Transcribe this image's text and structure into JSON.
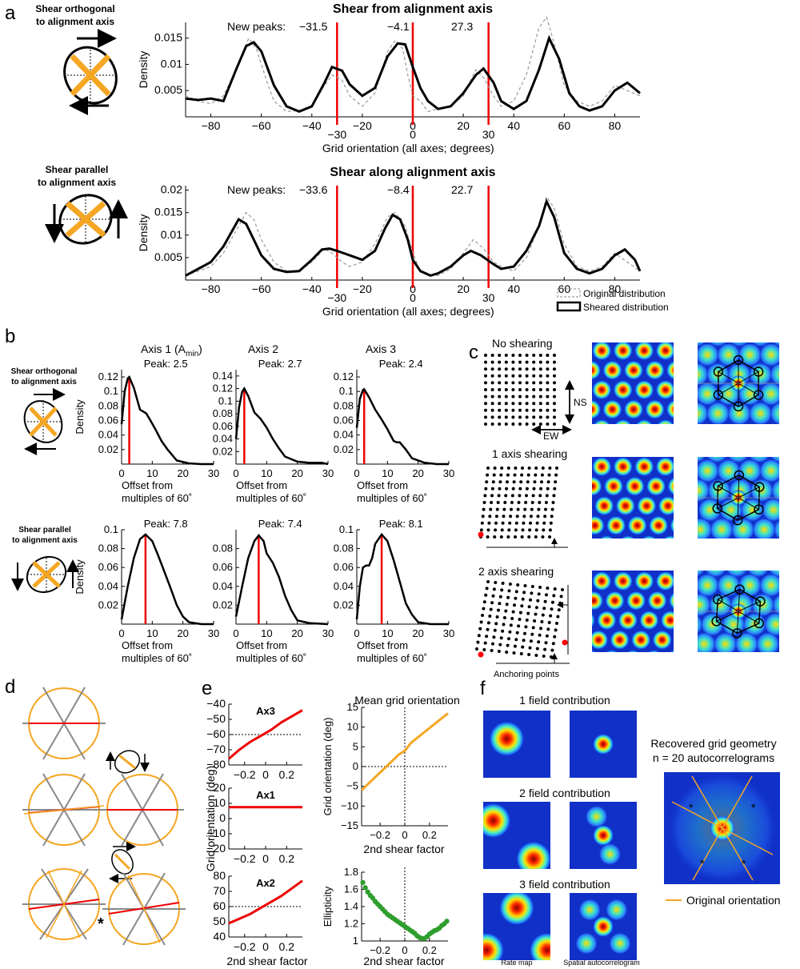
{
  "panels": {
    "a": "a",
    "b": "b",
    "c": "c",
    "d": "d",
    "e": "e",
    "f": "f"
  },
  "a": {
    "top": {
      "side_label": [
        "Shear orthogonal",
        "to alignment axis"
      ],
      "title": "Shear from alignment axis",
      "new_peaks_label": "New peaks:",
      "peaks": [
        "−31.5",
        "−4.1",
        "27.3"
      ]
    },
    "bottom": {
      "side_label": [
        "Shear parallel",
        "to alignment axis"
      ],
      "title": "Shear along alignment axis",
      "new_peaks_label": "New peaks:",
      "peaks": [
        "−33.6",
        "−8.4",
        "22.7"
      ]
    },
    "legend": {
      "original": "Original distribution",
      "sheared": "Sheared distribution"
    }
  },
  "b": {
    "side_top": [
      "Shear orthogonal",
      "to alignment axis"
    ],
    "side_bottom": [
      "Shear parallel",
      "to alignment axis"
    ],
    "axis_titles": [
      "Axis 1 (A",
      "min",
      ")",
      "Axis 2",
      "Axis 3"
    ],
    "xlabel": [
      "Offset from",
      "multiples of 60˚"
    ],
    "peaks_top": [
      "Peak: 2.5",
      "Peak: 2.7",
      "Peak: 2.4"
    ],
    "peaks_bottom": [
      "Peak: 7.8",
      "Peak: 7.4",
      "Peak: 8.1"
    ]
  },
  "c": {
    "rows": [
      "No shearing",
      "1 axis shearing",
      "2 axis shearing"
    ],
    "ns": "NS",
    "ew": "EW",
    "anchoring": "Anchoring points"
  },
  "e": {
    "left_titles": [
      "Ax3",
      "Ax1",
      "Ax2"
    ],
    "left_ylabel": "Grid orientation (deg)",
    "xlabel": "2nd shear factor",
    "mean_title": "Mean grid orientation",
    "mean_ylabel": "Grid orientation (deg)",
    "ell_ylabel": "Ellipticity"
  },
  "f": {
    "rows": [
      "1 field contribution",
      "2 field contribution",
      "3 field contribution"
    ],
    "rate_map": "Rate map",
    "autocorr": "Spatial autocorrelogram",
    "recovered_title": [
      "Recovered grid geometry",
      "n = 20 autocorrelograms"
    ],
    "legend": "Original orientation"
  },
  "chart_data": [
    {
      "type": "line",
      "panel": "a-top",
      "title": "Shear from alignment axis",
      "xlabel": "Grid orientation (all axes; degrees)",
      "ylabel": "Density",
      "xlim": [
        -90,
        90
      ],
      "ylim": [
        0,
        0.018
      ],
      "xticks": [
        -80,
        -60,
        -40,
        -20,
        0,
        20,
        40,
        60,
        80
      ],
      "yticks": [
        0.005,
        0.01,
        0.015
      ],
      "marker_lines": [
        -30,
        0,
        30
      ],
      "series": [
        {
          "name": "Original distribution",
          "style": "dashed",
          "x": [
            -90,
            -85,
            -80,
            -75,
            -70,
            -65,
            -62,
            -58,
            -55,
            -50,
            -45,
            -40,
            -35,
            -32,
            -28,
            -25,
            -20,
            -15,
            -10,
            -7,
            -4,
            -2,
            0,
            3,
            6,
            10,
            15,
            20,
            25,
            28,
            32,
            35,
            40,
            45,
            50,
            53,
            56,
            60,
            65,
            70,
            75,
            80,
            85,
            90
          ],
          "y": [
            0.004,
            0.003,
            0.0025,
            0.004,
            0.009,
            0.015,
            0.013,
            0.007,
            0.003,
            0.001,
            0.0012,
            0.002,
            0.006,
            0.008,
            0.007,
            0.004,
            0.002,
            0.0045,
            0.0125,
            0.0145,
            0.013,
            0.008,
            0.004,
            0.003,
            0.001,
            0.0015,
            0.002,
            0.004,
            0.009,
            0.0075,
            0.004,
            0.002,
            0.003,
            0.008,
            0.017,
            0.019,
            0.014,
            0.006,
            0.003,
            0.002,
            0.003,
            0.006,
            0.005,
            0.004
          ]
        },
        {
          "name": "Sheared distribution",
          "style": "solid",
          "x": [
            -90,
            -85,
            -80,
            -75,
            -70,
            -66,
            -63,
            -60,
            -55,
            -50,
            -45,
            -40,
            -35,
            -32,
            -28,
            -25,
            -20,
            -15,
            -10,
            -6,
            -3,
            0,
            3,
            6,
            10,
            15,
            20,
            25,
            28,
            32,
            35,
            40,
            45,
            50,
            54,
            58,
            62,
            66,
            70,
            75,
            80,
            85,
            90
          ],
          "y": [
            0.0035,
            0.0032,
            0.0035,
            0.003,
            0.009,
            0.0135,
            0.0142,
            0.0125,
            0.006,
            0.002,
            0.001,
            0.002,
            0.0065,
            0.0095,
            0.0088,
            0.0062,
            0.004,
            0.0055,
            0.0115,
            0.014,
            0.0138,
            0.0095,
            0.0055,
            0.003,
            0.0015,
            0.002,
            0.0045,
            0.008,
            0.0092,
            0.0065,
            0.003,
            0.0015,
            0.003,
            0.009,
            0.015,
            0.011,
            0.0045,
            0.002,
            0.0012,
            0.002,
            0.005,
            0.0065,
            0.0045
          ]
        }
      ]
    },
    {
      "type": "line",
      "panel": "a-bottom",
      "title": "Shear along alignment axis",
      "xlabel": "Grid orientation (all axes; degrees)",
      "ylabel": "Density",
      "xlim": [
        -90,
        90
      ],
      "ylim": [
        0,
        0.021
      ],
      "xticks": [
        -80,
        -60,
        -40,
        -20,
        0,
        20,
        40,
        60,
        80
      ],
      "yticks": [
        0.005,
        0.01,
        0.015,
        0.02
      ],
      "marker_lines": [
        -30,
        0,
        30
      ],
      "series": [
        {
          "name": "Original distribution",
          "style": "dashed",
          "x": [
            -90,
            -85,
            -80,
            -75,
            -70,
            -66,
            -63,
            -60,
            -55,
            -50,
            -45,
            -40,
            -35,
            -32,
            -28,
            -25,
            -20,
            -15,
            -10,
            -7,
            -3,
            0,
            3,
            6,
            10,
            15,
            20,
            24,
            28,
            32,
            35,
            40,
            45,
            50,
            53,
            56,
            60,
            65,
            70,
            75,
            80,
            85,
            90
          ],
          "y": [
            0.001,
            0.002,
            0.003,
            0.006,
            0.011,
            0.015,
            0.0135,
            0.009,
            0.004,
            0.002,
            0.002,
            0.004,
            0.007,
            0.006,
            0.004,
            0.003,
            0.004,
            0.008,
            0.014,
            0.015,
            0.012,
            0.006,
            0.002,
            0.0012,
            0.001,
            0.0025,
            0.006,
            0.009,
            0.007,
            0.004,
            0.003,
            0.002,
            0.005,
            0.012,
            0.0185,
            0.016,
            0.008,
            0.003,
            0.002,
            0.003,
            0.006,
            0.004,
            0.002
          ]
        },
        {
          "name": "Sheared distribution",
          "style": "solid",
          "x": [
            -90,
            -85,
            -80,
            -75,
            -72,
            -69,
            -66,
            -63,
            -60,
            -55,
            -50,
            -45,
            -40,
            -36,
            -33,
            -30,
            -25,
            -20,
            -15,
            -11,
            -8,
            -5,
            -2,
            0,
            3,
            7,
            10,
            15,
            20,
            23,
            27,
            32,
            35,
            40,
            45,
            50,
            53,
            56,
            60,
            65,
            70,
            75,
            80,
            84,
            88,
            90
          ],
          "y": [
            0.001,
            0.0025,
            0.004,
            0.0075,
            0.0105,
            0.0135,
            0.0125,
            0.009,
            0.0055,
            0.0025,
            0.0018,
            0.002,
            0.0045,
            0.0068,
            0.007,
            0.0065,
            0.0055,
            0.0045,
            0.0065,
            0.0115,
            0.0145,
            0.0135,
            0.009,
            0.0045,
            0.002,
            0.001,
            0.0015,
            0.003,
            0.0055,
            0.0065,
            0.0055,
            0.0035,
            0.0025,
            0.003,
            0.0065,
            0.012,
            0.0175,
            0.014,
            0.006,
            0.0025,
            0.0015,
            0.0025,
            0.0055,
            0.0068,
            0.0045,
            0.002
          ]
        }
      ]
    },
    {
      "type": "line",
      "panel": "b",
      "xlabel": "Offset from multiples of 60˚",
      "ylabel": "Density",
      "xlim": [
        0,
        30
      ],
      "xticks": [
        0,
        10,
        20,
        30
      ],
      "subplots": [
        {
          "row": "top",
          "title": "Axis 1 (Amin)",
          "peak": 2.5,
          "ylim": [
            0,
            0.13
          ],
          "yticks": [
            0.02,
            0.04,
            0.06,
            0.08,
            0.1,
            0.12
          ],
          "x": [
            0,
            1,
            2,
            2.5,
            4,
            6,
            8,
            9,
            11,
            13,
            15,
            18,
            22,
            26,
            30
          ],
          "y": [
            0.055,
            0.1,
            0.118,
            0.12,
            0.105,
            0.075,
            0.07,
            0.063,
            0.048,
            0.032,
            0.02,
            0.005,
            0.001,
            0,
            0
          ]
        },
        {
          "row": "top",
          "title": "Axis 2",
          "peak": 2.7,
          "ylim": [
            0,
            0.15
          ],
          "yticks": [
            0.02,
            0.04,
            0.06,
            0.08,
            0.1,
            0.12,
            0.14
          ],
          "x": [
            0,
            1,
            2,
            2.7,
            4,
            6,
            8,
            10,
            12,
            14,
            16,
            20,
            24,
            28,
            30
          ],
          "y": [
            0.04,
            0.09,
            0.115,
            0.12,
            0.108,
            0.082,
            0.072,
            0.058,
            0.04,
            0.025,
            0.012,
            0.004,
            0.002,
            0.002,
            0
          ]
        },
        {
          "row": "top",
          "title": "Axis 3",
          "peak": 2.4,
          "ylim": [
            0,
            0.13
          ],
          "yticks": [
            0.02,
            0.04,
            0.06,
            0.08,
            0.1,
            0.12
          ],
          "x": [
            0,
            1,
            2,
            2.4,
            4,
            6,
            8,
            10,
            12,
            13,
            14,
            16,
            18,
            22,
            26,
            30
          ],
          "y": [
            0.05,
            0.09,
            0.102,
            0.103,
            0.092,
            0.075,
            0.062,
            0.048,
            0.032,
            0.03,
            0.03,
            0.02,
            0.008,
            0.002,
            0,
            0
          ]
        },
        {
          "row": "bottom",
          "title": "",
          "peak": 7.8,
          "ylim": [
            0,
            0.1
          ],
          "yticks": [
            0.02,
            0.04,
            0.06,
            0.08,
            0.1
          ],
          "x": [
            0,
            2,
            4,
            6,
            7.8,
            10,
            12,
            14,
            16,
            18,
            20,
            22,
            26,
            30
          ],
          "y": [
            0.005,
            0.04,
            0.07,
            0.09,
            0.095,
            0.088,
            0.072,
            0.055,
            0.038,
            0.02,
            0.008,
            0.002,
            0,
            0
          ]
        },
        {
          "row": "bottom",
          "title": "",
          "peak": 7.4,
          "ylim": [
            0,
            0.1
          ],
          "yticks": [
            0.02,
            0.04,
            0.06,
            0.08
          ],
          "x": [
            0,
            2,
            4,
            6,
            7.4,
            9,
            10,
            12,
            14,
            16,
            18,
            20,
            24,
            30
          ],
          "y": [
            0.008,
            0.04,
            0.07,
            0.088,
            0.094,
            0.088,
            0.075,
            0.065,
            0.05,
            0.03,
            0.015,
            0.004,
            0.001,
            0
          ]
        },
        {
          "row": "bottom",
          "title": "",
          "peak": 8.1,
          "ylim": [
            0,
            0.1
          ],
          "yticks": [
            0.02,
            0.04,
            0.06,
            0.08,
            0.1
          ],
          "x": [
            0,
            1,
            2,
            3,
            4,
            5,
            6,
            8.1,
            10,
            12,
            14,
            16,
            18,
            20,
            24,
            30
          ],
          "y": [
            0.005,
            0.04,
            0.06,
            0.062,
            0.062,
            0.07,
            0.085,
            0.095,
            0.088,
            0.068,
            0.045,
            0.022,
            0.01,
            0.002,
            0,
            0
          ]
        }
      ]
    },
    {
      "type": "line",
      "panel": "e-left",
      "xlabel": "2nd shear factor",
      "ylabel": "Grid orientation (deg)",
      "xlim": [
        -0.35,
        0.35
      ],
      "xticks": [
        -0.2,
        0,
        0.2
      ],
      "subplots": [
        {
          "title": "Ax3",
          "ylim": [
            -80,
            -40
          ],
          "yticks": [
            -80,
            -70,
            -60,
            -50,
            -40
          ],
          "hline": -60,
          "x": [
            -0.35,
            -0.25,
            -0.15,
            -0.05,
            0.05,
            0.15,
            0.25,
            0.35
          ],
          "y": [
            -76,
            -70,
            -65,
            -61,
            -57,
            -52,
            -48,
            -44
          ]
        },
        {
          "title": "Ax1",
          "ylim": [
            -20,
            20
          ],
          "yticks": [
            -20,
            -10,
            0,
            10,
            20
          ],
          "hline": null,
          "x": [
            -0.35,
            0.35
          ],
          "y": [
            7.5,
            7.5
          ]
        },
        {
          "title": "Ax2",
          "ylim": [
            40,
            80
          ],
          "yticks": [
            40,
            50,
            60,
            70,
            80
          ],
          "hline": 60,
          "x": [
            -0.35,
            -0.25,
            -0.15,
            -0.05,
            0.05,
            0.15,
            0.25,
            0.35
          ],
          "y": [
            49,
            52,
            55,
            59,
            63,
            67,
            72,
            77
          ]
        }
      ]
    },
    {
      "type": "line",
      "panel": "e-mean",
      "title": "Mean grid orientation",
      "xlabel": "2nd shear factor",
      "ylabel": "Grid orientation (deg)",
      "xlim": [
        -0.35,
        0.35
      ],
      "ylim": [
        -15,
        15
      ],
      "xticks": [
        -0.2,
        0,
        0.2
      ],
      "yticks": [
        -15,
        -10,
        -5,
        0,
        5,
        10,
        15
      ],
      "x": [
        -0.35,
        -0.25,
        -0.15,
        -0.05,
        0,
        0.05,
        0.15,
        0.25,
        0.35
      ],
      "y": [
        -6,
        -3,
        0,
        3,
        4,
        6,
        8.5,
        11,
        13.5
      ]
    },
    {
      "type": "scatter",
      "panel": "e-ellipticity",
      "xlabel": "2nd shear factor",
      "ylabel": "Ellipticity",
      "xlim": [
        -0.35,
        0.35
      ],
      "ylim": [
        1,
        1.8
      ],
      "xticks": [
        -0.2,
        0,
        0.2
      ],
      "yticks": [
        1,
        1.2,
        1.4,
        1.6,
        1.8
      ],
      "x": [
        -0.34,
        -0.32,
        -0.3,
        -0.28,
        -0.26,
        -0.24,
        -0.22,
        -0.2,
        -0.18,
        -0.16,
        -0.14,
        -0.12,
        -0.1,
        -0.08,
        -0.06,
        -0.04,
        -0.02,
        0,
        0.02,
        0.04,
        0.06,
        0.08,
        0.1,
        0.12,
        0.14,
        0.16,
        0.18,
        0.2,
        0.22,
        0.24,
        0.26,
        0.28,
        0.3,
        0.32,
        0.34
      ],
      "y": [
        1.68,
        1.62,
        1.57,
        1.53,
        1.5,
        1.46,
        1.43,
        1.4,
        1.37,
        1.34,
        1.31,
        1.29,
        1.27,
        1.25,
        1.23,
        1.21,
        1.19,
        1.17,
        1.15,
        1.13,
        1.11,
        1.09,
        1.06,
        1.04,
        1.03,
        1.03,
        1.05,
        1.08,
        1.1,
        1.12,
        1.13,
        1.15,
        1.18,
        1.2,
        1.23
      ]
    }
  ]
}
